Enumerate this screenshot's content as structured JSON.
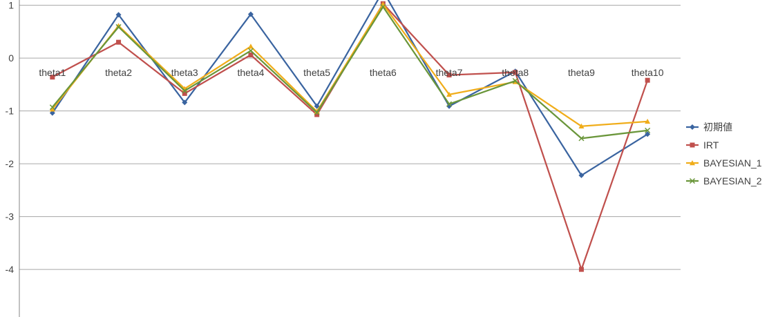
{
  "chart_data": {
    "type": "line",
    "categories": [
      "theta1",
      "theta2",
      "theta3",
      "theta4",
      "theta5",
      "theta6",
      "theta7",
      "theta8",
      "theta9",
      "theta10"
    ],
    "ylim": [
      -4.6,
      1.4
    ],
    "yticks": [
      1,
      0,
      -1,
      -2,
      -3,
      -4
    ],
    "grid": true,
    "legend_position": "right",
    "series": [
      {
        "name": "初期値",
        "color": "#3a64a0",
        "marker": "diamond",
        "values": [
          -1.04,
          0.82,
          -0.84,
          0.83,
          -0.91,
          1.27,
          -0.91,
          -0.25,
          -2.22,
          -1.44
        ]
      },
      {
        "name": "IRT",
        "color": "#c0504d",
        "marker": "square",
        "values": [
          -0.36,
          0.3,
          -0.67,
          0.06,
          -1.07,
          1.03,
          -0.32,
          -0.27,
          -4.0,
          -0.42
        ]
      },
      {
        "name": "BAYESIAN_1",
        "color": "#f0ad1a",
        "marker": "triangle",
        "values": [
          -0.97,
          0.61,
          -0.58,
          0.22,
          -1.01,
          1.02,
          -0.69,
          -0.45,
          -1.29,
          -1.2
        ]
      },
      {
        "name": "BAYESIAN_2",
        "color": "#6a963a",
        "marker": "x",
        "values": [
          -0.93,
          0.59,
          -0.62,
          0.14,
          -1.03,
          0.97,
          -0.87,
          -0.43,
          -1.52,
          -1.37
        ]
      }
    ]
  }
}
